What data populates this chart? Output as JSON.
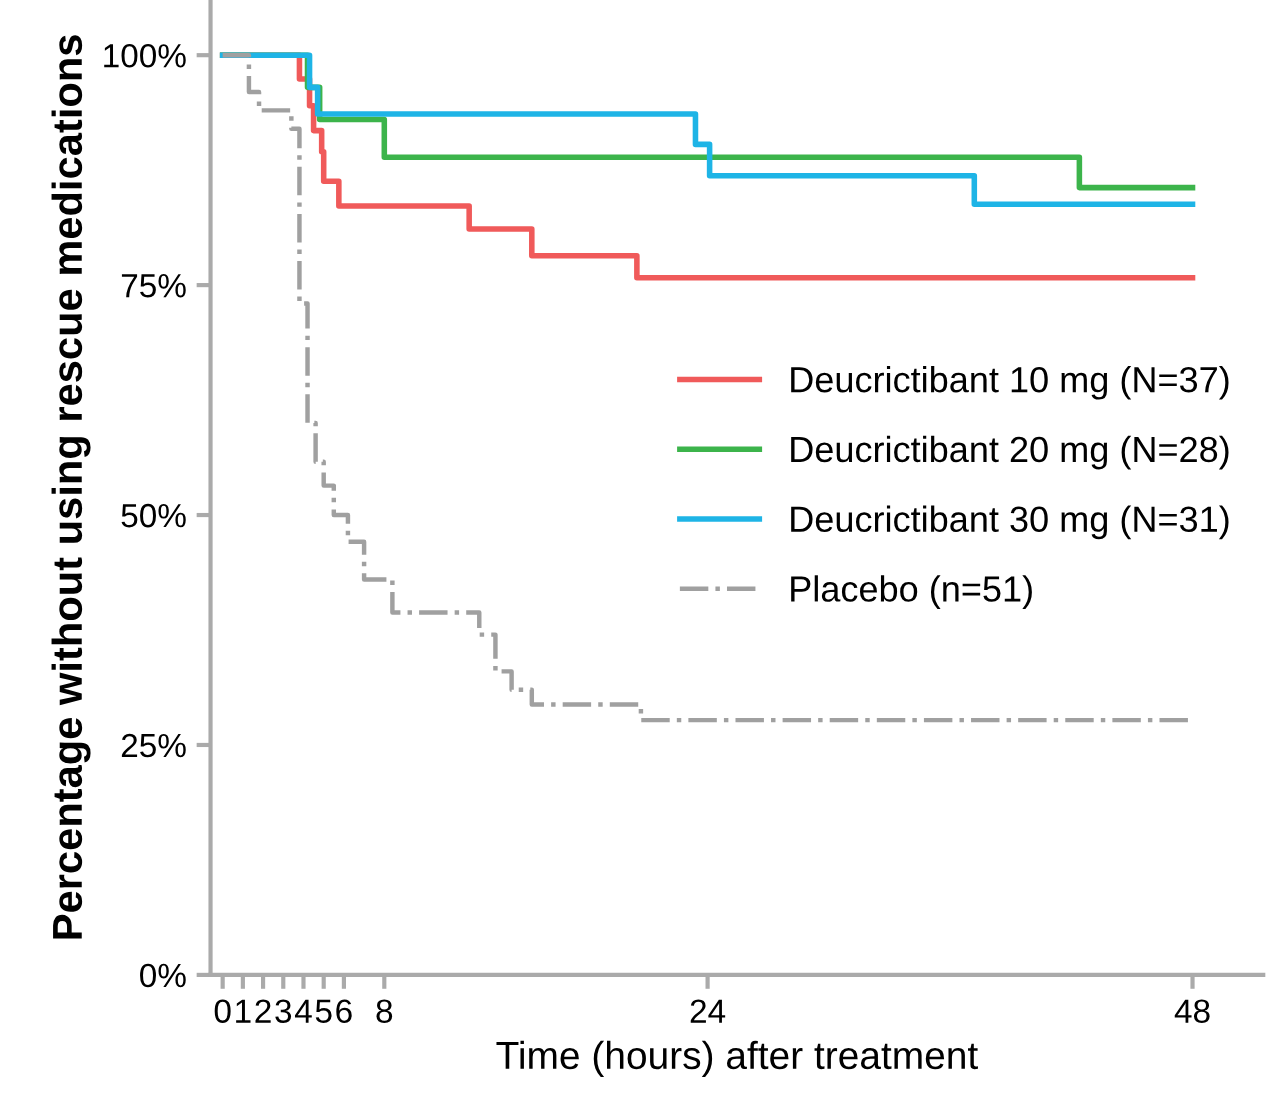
{
  "chart_data": {
    "type": "step",
    "xlabel": "Time (hours) after treatment",
    "ylabel": "Percentage without using rescue medications",
    "xlim": [
      -0.6,
      51.5
    ],
    "ylim": [
      0,
      106
    ],
    "xticks": [
      0,
      1,
      2,
      3,
      4,
      5,
      6,
      8,
      24,
      48
    ],
    "yticks": [
      {
        "value": 0,
        "label": "0%"
      },
      {
        "value": 25,
        "label": "25%"
      },
      {
        "value": 50,
        "label": "50%"
      },
      {
        "value": 75,
        "label": "75%"
      },
      {
        "value": 100,
        "label": "100%"
      }
    ],
    "grid": false,
    "legend": "right",
    "marker": "none",
    "series": [
      {
        "name": "Deucrictibant 10 mg (N=37)",
        "color": "#f05a5a",
        "line_style": "solid",
        "x": [
          0,
          3.8,
          4.3,
          4.5,
          4.9,
          5.0,
          5.75,
          12.2,
          15.3,
          20.5,
          48
        ],
        "values": [
          100,
          97.4,
          94.5,
          91.8,
          89.5,
          86.3,
          83.6,
          81.1,
          78.2,
          75.8,
          75.8
        ]
      },
      {
        "name": "Deucrictibant 20 mg (N=28)",
        "color": "#3cb44b",
        "line_style": "solid",
        "x": [
          0,
          4.2,
          4.8,
          8.0,
          42.4,
          48
        ],
        "values": [
          100,
          96.5,
          93.0,
          88.9,
          85.6,
          85.6
        ]
      },
      {
        "name": "Deucrictibant 30 mg (N=31)",
        "color": "#1eb4e6",
        "line_style": "solid",
        "x": [
          0,
          4.3,
          4.7,
          23.4,
          24.1,
          37.2,
          48
        ],
        "values": [
          100,
          96.5,
          93.6,
          90.3,
          86.9,
          83.8,
          83.8
        ]
      },
      {
        "name": "Placebo (n=51)",
        "color": "#a0a0a0",
        "line_style": "dashdot",
        "x": [
          0,
          1.3,
          1.8,
          3.4,
          3.8,
          4.2,
          4.6,
          5.0,
          5.5,
          6.2,
          7.0,
          8.4,
          12.7,
          13.5,
          14.3,
          15.3,
          20.7,
          48
        ],
        "values": [
          100,
          96,
          94,
          92,
          73,
          60,
          55.8,
          53.2,
          50,
          47.1,
          43,
          39.4,
          37,
          33,
          31,
          29.4,
          27.7,
          27.7
        ]
      }
    ]
  }
}
